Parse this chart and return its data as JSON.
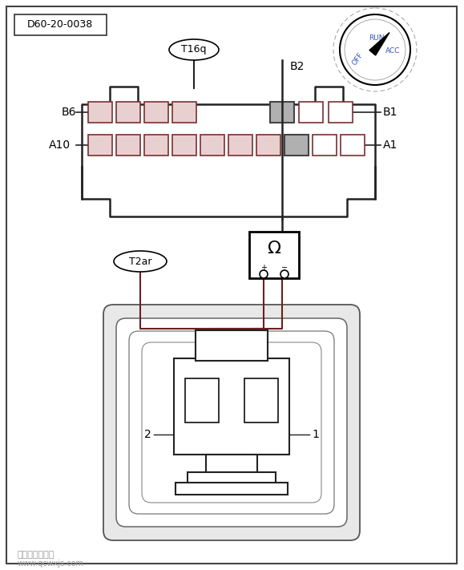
{
  "bg_color": "#ffffff",
  "border_color": "#333333",
  "line_color": "#6b2020",
  "dark_line": "#222222",
  "label_id": "D60-20-0038",
  "connector_label": "T16q",
  "connector2_label": "T2ar",
  "B2_label": "B2",
  "B6_label": "B6",
  "B1_label": "B1",
  "A10_label": "A10",
  "A1_label": "A1",
  "label_1": "1",
  "label_2": "2",
  "watermark": "汽车维修技术网",
  "watermark2": "www.qcwxjs.com",
  "pin_edge_color": "#7a3030",
  "pin_face_color": "#e8d0d0",
  "dial_label_color": "#3355bb"
}
